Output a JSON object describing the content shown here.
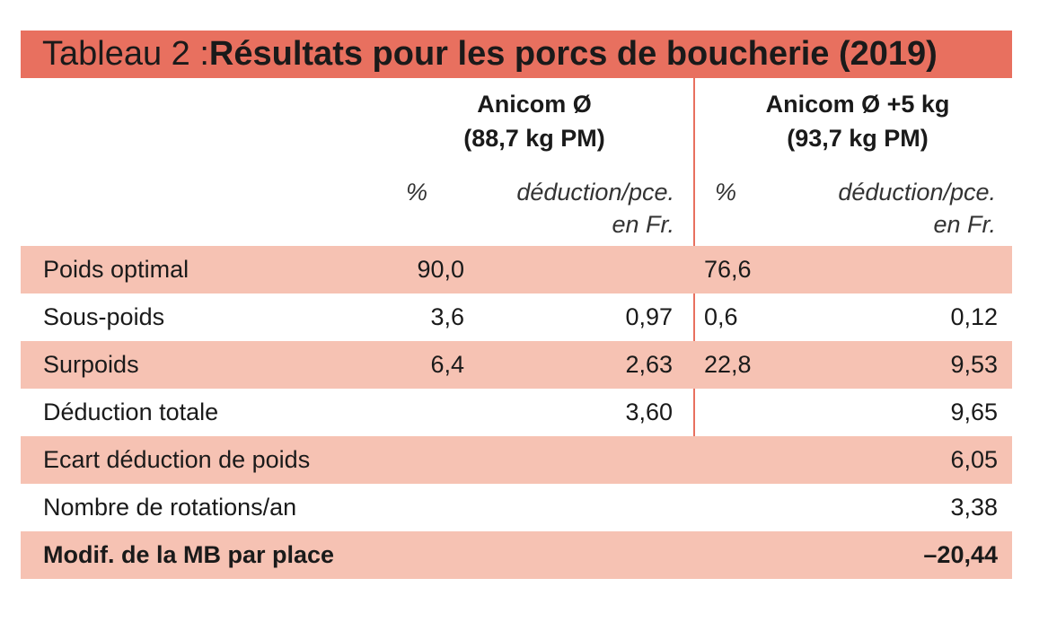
{
  "title": {
    "prefix": "Tableau 2 : ",
    "main": "Résultats pour les porcs de boucherie (2019)"
  },
  "columns": {
    "group_a": {
      "line1": "Anicom Ø",
      "line2": "(88,7 kg PM)"
    },
    "group_b": {
      "line1": "Anicom Ø +5 kg",
      "line2": "(93,7 kg PM)"
    },
    "pct_label": "%",
    "deduction_line1": "déduction/pce.",
    "deduction_line2": "en Fr."
  },
  "rows": [
    {
      "label": "Poids optimal",
      "pct_a": "90,0",
      "ded_a": "",
      "pct_b": "76,6",
      "ded_b": ""
    },
    {
      "label": "Sous-poids",
      "pct_a": "3,6",
      "ded_a": "0,97",
      "pct_b": "0,6",
      "ded_b": "0,12"
    },
    {
      "label": "Surpoids",
      "pct_a": "6,4",
      "ded_a": "2,63",
      "pct_b": "22,8",
      "ded_b": "9,53"
    },
    {
      "label": "Déduction totale",
      "pct_a": "",
      "ded_a": "3,60",
      "pct_b": "",
      "ded_b": "9,65"
    },
    {
      "label": "Ecart déduction de poids",
      "value": "6,05"
    },
    {
      "label": "Nombre de rotations/an",
      "value": "3,38"
    },
    {
      "label": "Modif. de la MB par place",
      "value": "–20,44"
    }
  ],
  "colors": {
    "title_background": "#e8705f",
    "row_shade": "#f6c2b3",
    "divider": "#e8705f"
  }
}
